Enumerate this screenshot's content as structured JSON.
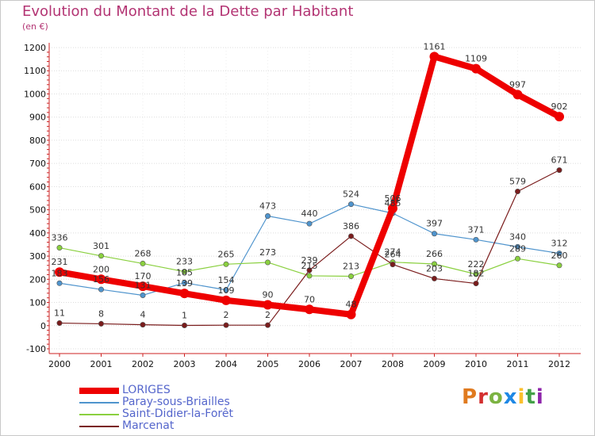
{
  "title": "Evolution du Montant de la Dette par Habitant",
  "subtitle": "(en €)",
  "logo_text": "Proxiti",
  "logo_colors": [
    "#e07a1f",
    "#d32f2f",
    "#7cb342",
    "#1e88e5",
    "#fbc02d",
    "#43a047",
    "#8e24aa"
  ],
  "chart_data": {
    "type": "line",
    "title": "Evolution du Montant de la Dette par Habitant",
    "ylabel": "(en €)",
    "xlabel": "",
    "ylim": [
      -100,
      1200
    ],
    "yticks": [
      -100,
      0,
      100,
      200,
      300,
      400,
      500,
      600,
      700,
      800,
      900,
      1000,
      1100,
      1200
    ],
    "categories": [
      "2000",
      "2001",
      "2002",
      "2003",
      "2004",
      "2005",
      "2006",
      "2007",
      "2008",
      "2009",
      "2010",
      "2011",
      "2012"
    ],
    "grid": "horizontal",
    "legend_position": "bottom-left",
    "series": [
      {
        "name": "LORIGES",
        "color": "#ee0000",
        "width": "thick",
        "values": [
          231,
          200,
          170,
          139,
          109,
          90,
          70,
          48,
          506,
          1161,
          1109,
          997,
          902
        ]
      },
      {
        "name": "Paray-sous-Briailles",
        "color": "#4f94cd",
        "width": "thin",
        "values": [
          183,
          156,
          131,
          185,
          154,
          473,
          440,
          524,
          485,
          397,
          371,
          340,
          312
        ]
      },
      {
        "name": "Saint-Didier-la-Forêt",
        "color": "#8ad03f",
        "width": "thin",
        "values": [
          336,
          301,
          268,
          233,
          265,
          273,
          215,
          213,
          274,
          266,
          222,
          289,
          260
        ]
      },
      {
        "name": "Marcenat",
        "color": "#7a1c1c",
        "width": "thin",
        "values": [
          11,
          8,
          4,
          1,
          2,
          2,
          239,
          386,
          264,
          203,
          182,
          579,
          671
        ]
      }
    ]
  }
}
